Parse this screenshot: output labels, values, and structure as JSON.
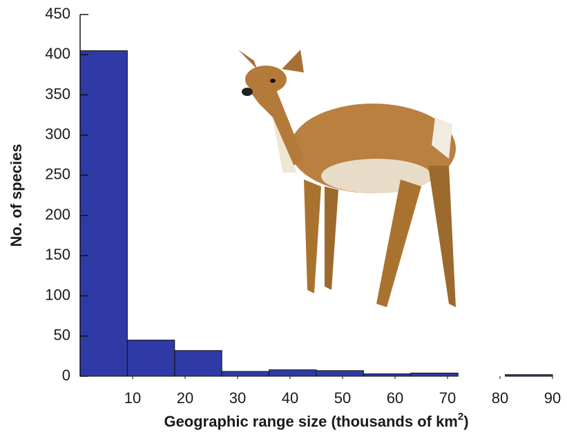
{
  "chart_data": {
    "type": "histogram",
    "y_label": "No. of species",
    "x_label": {
      "text": "Geographic range size (thousands of km",
      "superscript": "2",
      "close": ")"
    },
    "bins": [
      0,
      9,
      18,
      27,
      36,
      45,
      54,
      63,
      72,
      81,
      90
    ],
    "counts": [
      405,
      45,
      32,
      6,
      8,
      7,
      3,
      4,
      0,
      2
    ],
    "color": "#2f3aa6",
    "xlim": [
      0,
      90
    ],
    "ylim": [
      0,
      450
    ],
    "xticks": [
      10,
      20,
      30,
      40,
      50,
      60,
      70,
      80,
      90
    ],
    "yticks": [
      0,
      50,
      100,
      150,
      200,
      250,
      300,
      350,
      400,
      450
    ]
  }
}
